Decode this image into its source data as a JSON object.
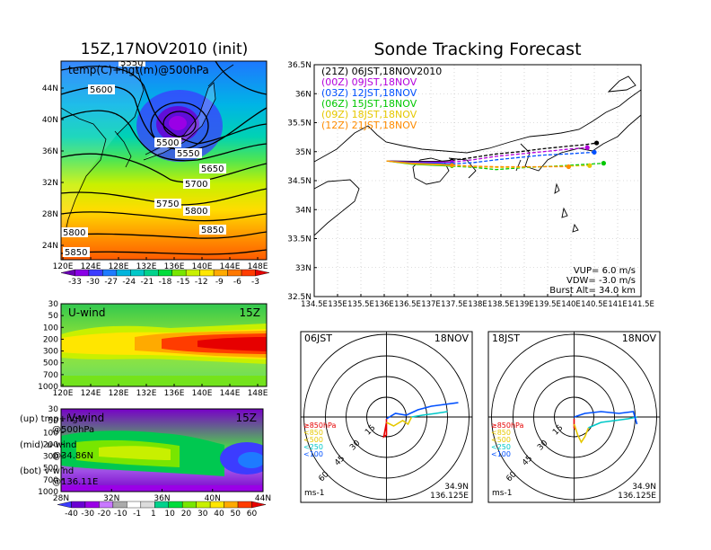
{
  "left_title": "15Z,17NOV2010 (init)",
  "right_title": "Sonde Tracking Forecast",
  "colors": {
    "temp_scale": [
      "#6a00b4",
      "#8a00e6",
      "#3c3cff",
      "#1e7bff",
      "#00b4dc",
      "#00c8c8",
      "#00d28c",
      "#00dc3c",
      "#78e600",
      "#c8f000",
      "#ffe600",
      "#ffaa00",
      "#ff7800",
      "#ff3c00",
      "#e60000"
    ],
    "wind_scale": [
      "#3c3cff",
      "#6a00d2",
      "#9a00e6",
      "#c878ff",
      "#aaaaaa",
      "#ffffff",
      "#dcdcdc",
      "#00d28c",
      "#00dc3c",
      "#78e600",
      "#c8f000",
      "#ffe600",
      "#ffaa00",
      "#ff3c00",
      "#e60000"
    ],
    "track_21Z": "#000000",
    "track_00Z": "#b400dc",
    "track_03Z": "#0050ff",
    "track_06Z": "#00c800",
    "track_09Z": "#e6c800",
    "track_12Z": "#ff8c00",
    "hodo_low": "#e60000",
    "hodo_mid": "#e6c800",
    "hodo_high": "#00c8c8",
    "hodo_top": "#0050ff"
  },
  "panel_upper": {
    "label": "temp(C)+hgt(m)@500hPa",
    "contours": [
      "5500",
      "5550",
      "5600",
      "5650",
      "5700",
      "5750",
      "5800",
      "5850",
      "5800",
      "5850",
      "5550"
    ],
    "yticks": [
      "44N",
      "40N",
      "36N",
      "32N",
      "28N",
      "24N"
    ],
    "xticks": [
      "120E",
      "124E",
      "128E",
      "132E",
      "136E",
      "140E",
      "144E",
      "148E"
    ]
  },
  "temp_colorbar": [
    "-33",
    "-30",
    "-27",
    "-24",
    "-21",
    "-18",
    "-15",
    "-12",
    "-9",
    "-6",
    "-3"
  ],
  "panel_uwind": {
    "label": "U-wind",
    "time": "15Z",
    "yticks": [
      "30",
      "50",
      "100",
      "200",
      "300",
      "500",
      "700",
      "1000"
    ],
    "xticks": [
      "120E",
      "124E",
      "128E",
      "132E",
      "136E",
      "140E",
      "144E",
      "148E"
    ]
  },
  "panel_vwind": {
    "label": "V-wind",
    "time": "15Z",
    "yticks": [
      "30",
      "50",
      "100",
      "200",
      "300",
      "500",
      "700",
      "1000"
    ],
    "xticks": [
      "28N",
      "32N",
      "36N",
      "40N",
      "44N"
    ]
  },
  "wind_colorbar": [
    "-40",
    "-30",
    "-20",
    "-10",
    "-1",
    "1",
    "10",
    "20",
    "30",
    "40",
    "50",
    "60"
  ],
  "legend_notes": [
    {
      "a": "(up) tmp+hgt",
      "b": "@500hPa"
    },
    {
      "a": "(mid) u-wind",
      "b": "@34.86N"
    },
    {
      "a": "(bot) v-wind",
      "b": "@136.11E"
    }
  ],
  "track_map": {
    "legend": [
      {
        "text": "(21Z)  06JST,18NOV2010",
        "color": "#000000"
      },
      {
        "text": "(00Z)  09JST,18NOV",
        "color": "#b400dc"
      },
      {
        "text": "(03Z)  12JST,18NOV",
        "color": "#0050ff"
      },
      {
        "text": "(06Z)  15JST,18NOV",
        "color": "#00c800"
      },
      {
        "text": "(09Z)  18JST,18NOV",
        "color": "#e6c800"
      },
      {
        "text": "(12Z)  21JST,18NOV",
        "color": "#ff8c00"
      }
    ],
    "yticks": [
      "36.5N",
      "36N",
      "35.5N",
      "35N",
      "34.5N",
      "34N",
      "33.5N",
      "33N",
      "32.5N"
    ],
    "xticks": [
      "134.5E",
      "135E",
      "135.5E",
      "136E",
      "136.5E",
      "137E",
      "137.5E",
      "138E",
      "138.5E",
      "139E",
      "139.5E",
      "140E",
      "140.5E",
      "141E",
      "141.5E"
    ],
    "info": [
      "VUP=  6.0  m/s",
      "VDW=  -3.0  m/s",
      "Burst Alt=  34.0  km"
    ]
  },
  "hodographs": [
    {
      "left": "06JST",
      "right": "18NOV",
      "levels": [
        "≥850hPa",
        "<850",
        "<500",
        "<250",
        "<100"
      ],
      "rings": [
        "15",
        "30",
        "45",
        "60"
      ],
      "unit": "ms-1",
      "lat": "34.9N",
      "lon": "136.125E"
    },
    {
      "left": "18JST",
      "right": "18NOV",
      "levels": [
        "≥850hPa",
        "<850",
        "<500",
        "<250",
        "<100"
      ],
      "rings": [
        "15",
        "30",
        "45",
        "60"
      ],
      "unit": "ms-1",
      "lat": "34.9N",
      "lon": "136.125E"
    }
  ],
  "chart_data": {
    "type": "line",
    "title": "Sonde Tracking Forecast",
    "xlim": [
      134.5,
      141.5
    ],
    "ylim": [
      32.5,
      36.5
    ],
    "series": [
      {
        "name": "(21Z)  06JST,18NOV2010",
        "x": [
          136.05,
          136.6,
          137.2,
          137.45,
          137.9,
          138.4,
          138.9,
          139.4,
          139.9,
          140.3,
          140.55
        ],
        "y": [
          34.84,
          34.83,
          34.83,
          34.85,
          34.9,
          34.96,
          35.0,
          35.05,
          35.09,
          35.12,
          35.15
        ]
      },
      {
        "name": "(00Z)  09JST,18NOV",
        "x": [
          136.05,
          136.6,
          137.2,
          137.45,
          137.9,
          138.4,
          138.9,
          139.4,
          139.9,
          140.35
        ],
        "y": [
          34.84,
          34.82,
          34.82,
          34.82,
          34.86,
          34.92,
          34.96,
          35.0,
          35.04,
          35.07
        ]
      },
      {
        "name": "(03Z)  12JST,18NOV",
        "x": [
          136.05,
          136.6,
          137.2,
          137.45,
          137.9,
          138.4,
          138.9,
          139.4,
          139.9,
          140.5
        ],
        "y": [
          34.84,
          34.81,
          34.8,
          34.79,
          34.81,
          34.86,
          34.9,
          34.94,
          34.96,
          34.99
        ]
      },
      {
        "name": "(06Z)  15JST,18NOV",
        "x": [
          136.05,
          136.6,
          137.2,
          137.45,
          137.9,
          138.4,
          138.9,
          139.4,
          139.9,
          140.3,
          140.7
        ],
        "y": [
          34.84,
          34.78,
          34.76,
          34.75,
          34.73,
          34.69,
          34.72,
          34.74,
          34.76,
          34.78,
          34.8
        ]
      },
      {
        "name": "(09Z)  18JST,18NOV",
        "x": [
          136.05,
          136.6,
          137.2,
          137.45,
          137.9,
          138.4,
          138.9,
          139.4,
          139.9,
          140.4
        ],
        "y": [
          34.84,
          34.79,
          34.77,
          34.76,
          34.74,
          34.73,
          34.73,
          34.74,
          34.75,
          34.76
        ]
      },
      {
        "name": "(12Z)  21JST,18NOV",
        "x": [
          136.05,
          136.6,
          137.2,
          137.45,
          137.9,
          138.4,
          138.9,
          139.4,
          139.95
        ],
        "y": [
          34.84,
          34.8,
          34.78,
          34.77,
          34.75,
          34.74,
          34.74,
          34.74,
          34.74
        ]
      }
    ]
  }
}
